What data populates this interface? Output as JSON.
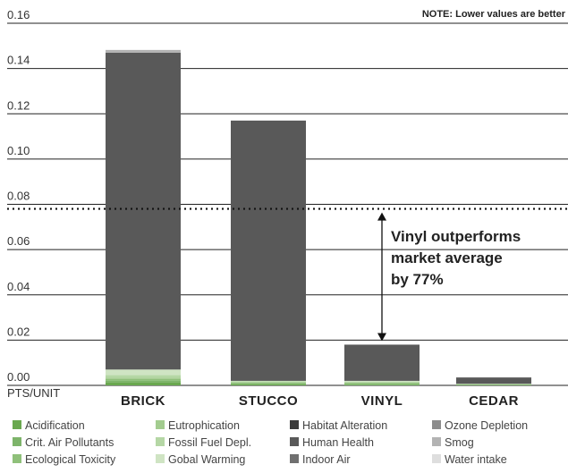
{
  "chart_data": {
    "type": "bar",
    "stacked": true,
    "note": "NOTE: Lower values are better",
    "ylabel": "PTS/UNIT",
    "ylim": [
      0,
      0.16
    ],
    "yticks": [
      "0.16",
      "0.14",
      "0.12",
      "0.10",
      "0.08",
      "0.06",
      "0.04",
      "0.02",
      "0.00"
    ],
    "grid": true,
    "categories": [
      "BRICK",
      "STUCCO",
      "VINYL",
      "CEDAR"
    ],
    "market_average": 0.078,
    "annotation": {
      "lines": [
        "Vinyl outperforms",
        "market average",
        "by 77%"
      ],
      "from": 0.078,
      "to": 0.018
    },
    "series": [
      {
        "name": "Acidification",
        "color": "#6aa84f",
        "values": [
          0.0012,
          0.0005,
          0.0003,
          0.0002
        ]
      },
      {
        "name": "Crit. Air Pollutants",
        "color": "#7db46a",
        "values": [
          0.0008,
          0.0003,
          0.0003,
          0.0001
        ]
      },
      {
        "name": "Ecological Toxicity",
        "color": "#8fc07a",
        "values": [
          0.0008,
          0.0004,
          0.0004,
          0.0001
        ]
      },
      {
        "name": "Eutrophication",
        "color": "#a3cc8f",
        "values": [
          0.0006,
          0.0003,
          0.0003,
          0.0001
        ]
      },
      {
        "name": "Fossil Fuel Depl.",
        "color": "#b5d7a5",
        "values": [
          0.0012,
          0.0003,
          0.0004,
          0.0001
        ]
      },
      {
        "name": "Gobal Warming",
        "color": "#cfe4c3",
        "values": [
          0.0024,
          0.0002,
          0.0003,
          0.0001
        ]
      },
      {
        "name": "Habitat Alteration",
        "color": "#3a3a3a",
        "values": [
          0.0,
          0.0,
          0.0,
          0.0
        ]
      },
      {
        "name": "Human Health",
        "color": "#595959",
        "values": [
          0.14,
          0.115,
          0.016,
          0.0028
        ]
      },
      {
        "name": "Indoor Air",
        "color": "#707070",
        "values": [
          0.0,
          0.0,
          0.0,
          0.0
        ]
      },
      {
        "name": "Ozone Depletion",
        "color": "#8c8c8c",
        "values": [
          0.0,
          0.0,
          0.0,
          0.0
        ]
      },
      {
        "name": "Smog",
        "color": "#b3b3b3",
        "values": [
          0.0012,
          0.0,
          0.0,
          0.0
        ]
      },
      {
        "name": "Water intake",
        "color": "#dedede",
        "values": [
          0.0,
          0.0,
          0.0,
          0.0
        ]
      }
    ]
  }
}
